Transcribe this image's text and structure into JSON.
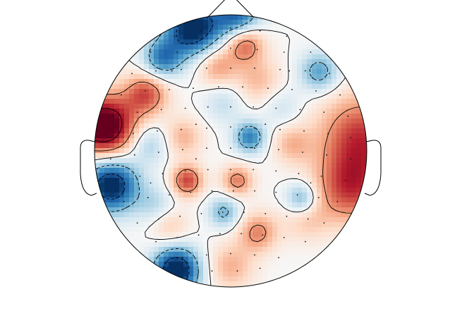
{
  "chart_data": {
    "type": "heatmap",
    "subtype": "eeg-topomap",
    "colormap": "RdBu_r",
    "title": "",
    "sensor_marker": "dot",
    "contour_style": {
      "positive": "solid",
      "negative": "dashed"
    },
    "field": {
      "positive_sources": [
        {
          "name": "left-edge-peak",
          "loc": [
            -0.93,
            0.18
          ],
          "amp": 1.7,
          "width": 0.16
        },
        {
          "name": "left-upper-patch",
          "loc": [
            -0.62,
            0.42
          ],
          "amp": 0.9,
          "width": 0.11
        },
        {
          "name": "right-edge",
          "loc": [
            0.96,
            0.1
          ],
          "amp": 1.0,
          "width": 0.22
        },
        {
          "name": "right-lower-edge",
          "loc": [
            0.88,
            -0.28
          ],
          "amp": 0.9,
          "width": 0.18
        },
        {
          "name": "top-center",
          "loc": [
            0.1,
            0.8
          ],
          "amp": 1.0,
          "width": 0.1
        },
        {
          "name": "top-center-2",
          "loc": [
            -0.1,
            0.62
          ],
          "amp": 0.6,
          "width": 0.1
        },
        {
          "name": "upper-mid",
          "loc": [
            0.2,
            0.52
          ],
          "amp": 0.45,
          "width": 0.12
        },
        {
          "name": "center-left",
          "loc": [
            -0.35,
            0.1
          ],
          "amp": 0.5,
          "width": 0.1
        },
        {
          "name": "center-lower-left",
          "loc": [
            -0.32,
            -0.22
          ],
          "amp": 1.0,
          "width": 0.08
        },
        {
          "name": "center-right-low",
          "loc": [
            0.05,
            -0.22
          ],
          "amp": 0.75,
          "width": 0.08
        },
        {
          "name": "right-mid",
          "loc": [
            0.45,
            0.05
          ],
          "amp": 0.45,
          "width": 0.1
        },
        {
          "name": "bottom-center",
          "loc": [
            0.2,
            -0.6
          ],
          "amp": 0.7,
          "width": 0.1
        },
        {
          "name": "bottom-mid",
          "loc": [
            0.0,
            -0.85
          ],
          "amp": 0.5,
          "width": 0.12
        },
        {
          "name": "lower-left",
          "loc": [
            -0.45,
            -0.55
          ],
          "amp": 0.4,
          "width": 0.1
        },
        {
          "name": "right-lower-mid",
          "loc": [
            0.55,
            -0.5
          ],
          "amp": 0.35,
          "width": 0.12
        }
      ],
      "negative_sources": [
        {
          "name": "top-left-arc",
          "loc": [
            -0.28,
            0.9
          ],
          "amp": 1.6,
          "width": 0.14
        },
        {
          "name": "top-arc",
          "loc": [
            0.05,
            0.98
          ],
          "amp": 1.2,
          "width": 0.12
        },
        {
          "name": "upper-left",
          "loc": [
            -0.5,
            0.68
          ],
          "amp": 1.0,
          "width": 0.1
        },
        {
          "name": "left-lower-edge",
          "loc": [
            -0.88,
            -0.25
          ],
          "amp": 1.6,
          "width": 0.14
        },
        {
          "name": "bottom-left",
          "loc": [
            -0.4,
            -0.88
          ],
          "amp": 1.7,
          "width": 0.12
        },
        {
          "name": "center",
          "loc": [
            0.14,
            0.1
          ],
          "amp": 1.0,
          "width": 0.08
        },
        {
          "name": "upper-right",
          "loc": [
            0.65,
            0.58
          ],
          "amp": 0.8,
          "width": 0.1
        },
        {
          "name": "right-mid-blue",
          "loc": [
            0.52,
            -0.35
          ],
          "amp": 0.8,
          "width": 0.08
        },
        {
          "name": "lower-center",
          "loc": [
            -0.05,
            -0.45
          ],
          "amp": 0.7,
          "width": 0.08
        },
        {
          "name": "center-left-blue",
          "loc": [
            -0.6,
            0.05
          ],
          "amp": 0.5,
          "width": 0.1
        },
        {
          "name": "mid-right",
          "loc": [
            0.38,
            0.32
          ],
          "amp": 0.3,
          "width": 0.1
        },
        {
          "name": "left-mid-low",
          "loc": [
            -0.55,
            -0.4
          ],
          "amp": 0.4,
          "width": 0.1
        },
        {
          "name": "upper-center",
          "loc": [
            -0.05,
            0.35
          ],
          "amp": 0.35,
          "width": 0.1
        }
      ],
      "contour_levels": [
        -1.2,
        -0.6,
        0.0,
        0.6,
        1.2
      ],
      "clim": [
        -1.4,
        1.4
      ]
    },
    "sensors": [
      [
        -0.42,
        0.86
      ],
      [
        -0.22,
        0.9
      ],
      [
        0.0,
        0.92
      ],
      [
        0.22,
        0.9
      ],
      [
        0.42,
        0.86
      ],
      [
        -0.6,
        0.74
      ],
      [
        -0.4,
        0.74
      ],
      [
        -0.2,
        0.76
      ],
      [
        0.0,
        0.77
      ],
      [
        0.2,
        0.76
      ],
      [
        0.4,
        0.74
      ],
      [
        0.6,
        0.74
      ],
      [
        -0.74,
        0.58
      ],
      [
        -0.56,
        0.6
      ],
      [
        -0.37,
        0.61
      ],
      [
        -0.18,
        0.62
      ],
      [
        0.0,
        0.62
      ],
      [
        0.18,
        0.62
      ],
      [
        0.37,
        0.61
      ],
      [
        0.56,
        0.6
      ],
      [
        0.74,
        0.58
      ],
      [
        -0.82,
        0.42
      ],
      [
        -0.64,
        0.45
      ],
      [
        -0.46,
        0.46
      ],
      [
        -0.28,
        0.47
      ],
      [
        -0.09,
        0.48
      ],
      [
        0.09,
        0.48
      ],
      [
        0.28,
        0.47
      ],
      [
        0.46,
        0.46
      ],
      [
        0.64,
        0.45
      ],
      [
        0.82,
        0.42
      ],
      [
        -0.88,
        0.26
      ],
      [
        -0.7,
        0.29
      ],
      [
        -0.52,
        0.31
      ],
      [
        -0.34,
        0.32
      ],
      [
        -0.17,
        0.33
      ],
      [
        0.0,
        0.33
      ],
      [
        0.17,
        0.33
      ],
      [
        0.34,
        0.32
      ],
      [
        0.52,
        0.31
      ],
      [
        0.7,
        0.29
      ],
      [
        0.88,
        0.26
      ],
      [
        -0.9,
        0.1
      ],
      [
        -0.73,
        0.13
      ],
      [
        -0.55,
        0.15
      ],
      [
        -0.37,
        0.16
      ],
      [
        -0.18,
        0.17
      ],
      [
        0.0,
        0.18
      ],
      [
        0.18,
        0.17
      ],
      [
        0.37,
        0.16
      ],
      [
        0.55,
        0.15
      ],
      [
        0.73,
        0.13
      ],
      [
        0.9,
        0.1
      ],
      [
        -0.9,
        -0.06
      ],
      [
        -0.72,
        -0.03
      ],
      [
        -0.54,
        -0.01
      ],
      [
        -0.36,
        0.01
      ],
      [
        -0.18,
        0.02
      ],
      [
        0.0,
        0.02
      ],
      [
        0.18,
        0.02
      ],
      [
        0.36,
        0.01
      ],
      [
        0.54,
        -0.01
      ],
      [
        0.72,
        -0.03
      ],
      [
        0.9,
        -0.06
      ],
      [
        -0.86,
        -0.22
      ],
      [
        -0.68,
        -0.19
      ],
      [
        -0.51,
        -0.17
      ],
      [
        -0.34,
        -0.15
      ],
      [
        -0.17,
        -0.14
      ],
      [
        0.0,
        -0.14
      ],
      [
        0.17,
        -0.14
      ],
      [
        0.34,
        -0.15
      ],
      [
        0.51,
        -0.17
      ],
      [
        0.68,
        -0.19
      ],
      [
        0.86,
        -0.22
      ],
      [
        -0.8,
        -0.38
      ],
      [
        -0.62,
        -0.35
      ],
      [
        -0.46,
        -0.33
      ],
      [
        -0.3,
        -0.31
      ],
      [
        -0.14,
        -0.3
      ],
      [
        0.02,
        -0.3
      ],
      [
        0.18,
        -0.3
      ],
      [
        0.34,
        -0.31
      ],
      [
        0.5,
        -0.33
      ],
      [
        0.66,
        -0.35
      ],
      [
        0.8,
        -0.38
      ],
      [
        -0.7,
        -0.54
      ],
      [
        -0.54,
        -0.51
      ],
      [
        -0.38,
        -0.49
      ],
      [
        -0.22,
        -0.47
      ],
      [
        -0.06,
        -0.46
      ],
      [
        0.1,
        -0.46
      ],
      [
        0.26,
        -0.47
      ],
      [
        0.42,
        -0.49
      ],
      [
        0.58,
        -0.51
      ],
      [
        0.7,
        -0.54
      ],
      [
        -0.56,
        -0.68
      ],
      [
        -0.4,
        -0.65
      ],
      [
        -0.24,
        -0.63
      ],
      [
        -0.08,
        -0.62
      ],
      [
        0.08,
        -0.62
      ],
      [
        0.24,
        -0.63
      ],
      [
        0.4,
        -0.65
      ],
      [
        0.56,
        -0.68
      ],
      [
        -0.36,
        -0.8
      ],
      [
        -0.18,
        -0.78
      ],
      [
        0.0,
        -0.77
      ],
      [
        0.18,
        -0.78
      ],
      [
        0.36,
        -0.8
      ],
      [
        -0.14,
        -0.9
      ],
      [
        0.05,
        -0.9
      ],
      [
        0.22,
        -0.88
      ],
      [
        -0.26,
        0.2
      ],
      [
        0.26,
        0.2
      ],
      [
        -0.26,
        -0.06
      ],
      [
        0.26,
        -0.06
      ],
      [
        -0.44,
        0.6
      ],
      [
        0.44,
        0.6
      ],
      [
        -0.6,
        -0.24
      ],
      [
        0.6,
        -0.24
      ]
    ]
  }
}
